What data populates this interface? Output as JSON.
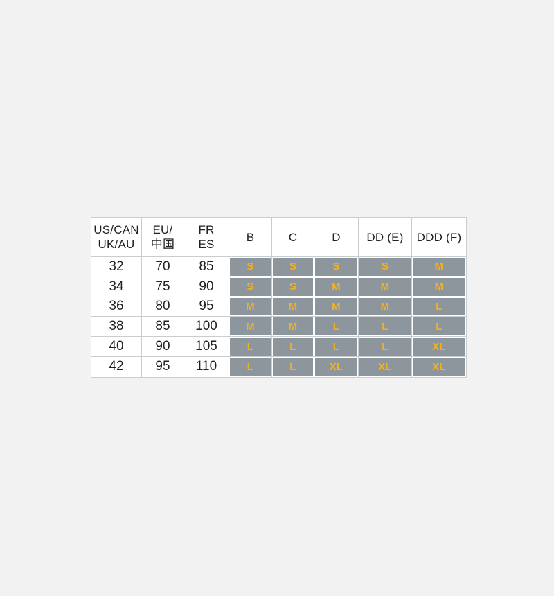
{
  "page": {
    "background": "#f2f2f2"
  },
  "colors": {
    "page_bg": "#f2f2f2",
    "cell_gray": "#8e969d",
    "accent_yellow": "#f9b016",
    "grid_line": "#c9cdcf",
    "text_dark": "#231f20",
    "cell_white": "#ffffff"
  },
  "table": {
    "headers": [
      {
        "line1": "US/CAN",
        "line2": "UK/AU"
      },
      {
        "line1": "EU/",
        "line2": "中国"
      },
      {
        "line1": "FR",
        "line2": "ES"
      },
      {
        "line1": "B",
        "line2": ""
      },
      {
        "line1": "C",
        "line2": ""
      },
      {
        "line1": "D",
        "line2": ""
      },
      {
        "line1": "DD (E)",
        "line2": ""
      },
      {
        "line1": "DDD (F)",
        "line2": ""
      }
    ]
  },
  "chart_data": {
    "type": "table",
    "title": "",
    "columns": [
      "US/CAN UK/AU",
      "EU/中国",
      "FR ES",
      "B",
      "C",
      "D",
      "DD (E)",
      "DDD (F)"
    ],
    "rows": [
      [
        "32",
        "70",
        "85",
        "S",
        "S",
        "S",
        "S",
        "M"
      ],
      [
        "34",
        "75",
        "90",
        "S",
        "S",
        "M",
        "M",
        "M"
      ],
      [
        "36",
        "80",
        "95",
        "M",
        "M",
        "M",
        "M",
        "L"
      ],
      [
        "38",
        "85",
        "100",
        "M",
        "M",
        "L",
        "L",
        "L"
      ],
      [
        "40",
        "90",
        "105",
        "L",
        "L",
        "L",
        "L",
        "XL"
      ],
      [
        "42",
        "95",
        "110",
        "L",
        "L",
        "XL",
        "XL",
        "XL"
      ]
    ]
  }
}
